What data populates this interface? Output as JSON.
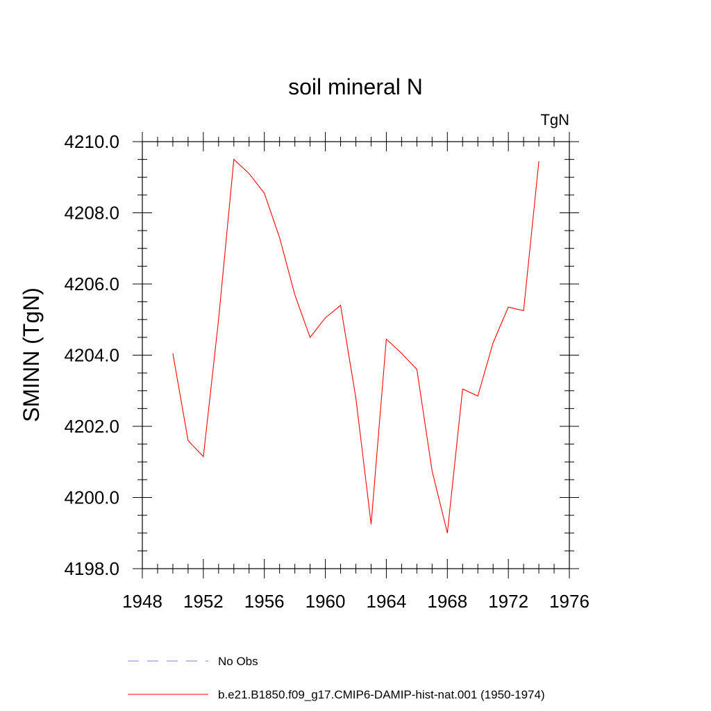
{
  "chart_data": {
    "type": "line",
    "title": "soil mineral N",
    "units": "TgN",
    "ylabel": "SMINN  (TgN)",
    "xlim": [
      1948,
      1976
    ],
    "ylim": [
      4198.0,
      4210.0
    ],
    "x_ticks": [
      "1948",
      "1952",
      "1956",
      "1960",
      "1964",
      "1968",
      "1972",
      "1976"
    ],
    "y_ticks": [
      "4198.0",
      "4200.0",
      "4202.0",
      "4204.0",
      "4206.0",
      "4208.0",
      "4210.0"
    ],
    "grid": false,
    "legend_position": "bottom",
    "series": [
      {
        "name": "No Obs",
        "style": "dashed",
        "color": "#7b7bd6",
        "x": [],
        "y": []
      },
      {
        "name": "b.e21.B1850.f09_g17.CMIP6-DAMIP-hist-nat.001 (1950-1974)",
        "style": "solid",
        "color": "#ff0000",
        "x": [
          1950,
          1951,
          1952,
          1953,
          1954,
          1955,
          1956,
          1957,
          1958,
          1959,
          1960,
          1961,
          1962,
          1963,
          1964,
          1965,
          1966,
          1967,
          1968,
          1969,
          1970,
          1971,
          1972,
          1973,
          1974
        ],
        "y": [
          4204.05,
          4201.6,
          4201.15,
          4205.0,
          4209.5,
          4209.1,
          4208.55,
          4207.3,
          4205.7,
          4204.5,
          4205.05,
          4205.4,
          4202.8,
          4199.25,
          4204.45,
          4204.05,
          4203.6,
          4200.75,
          4199.0,
          4203.05,
          4202.85,
          4204.35,
          4205.35,
          4205.25,
          4209.45
        ]
      }
    ]
  }
}
